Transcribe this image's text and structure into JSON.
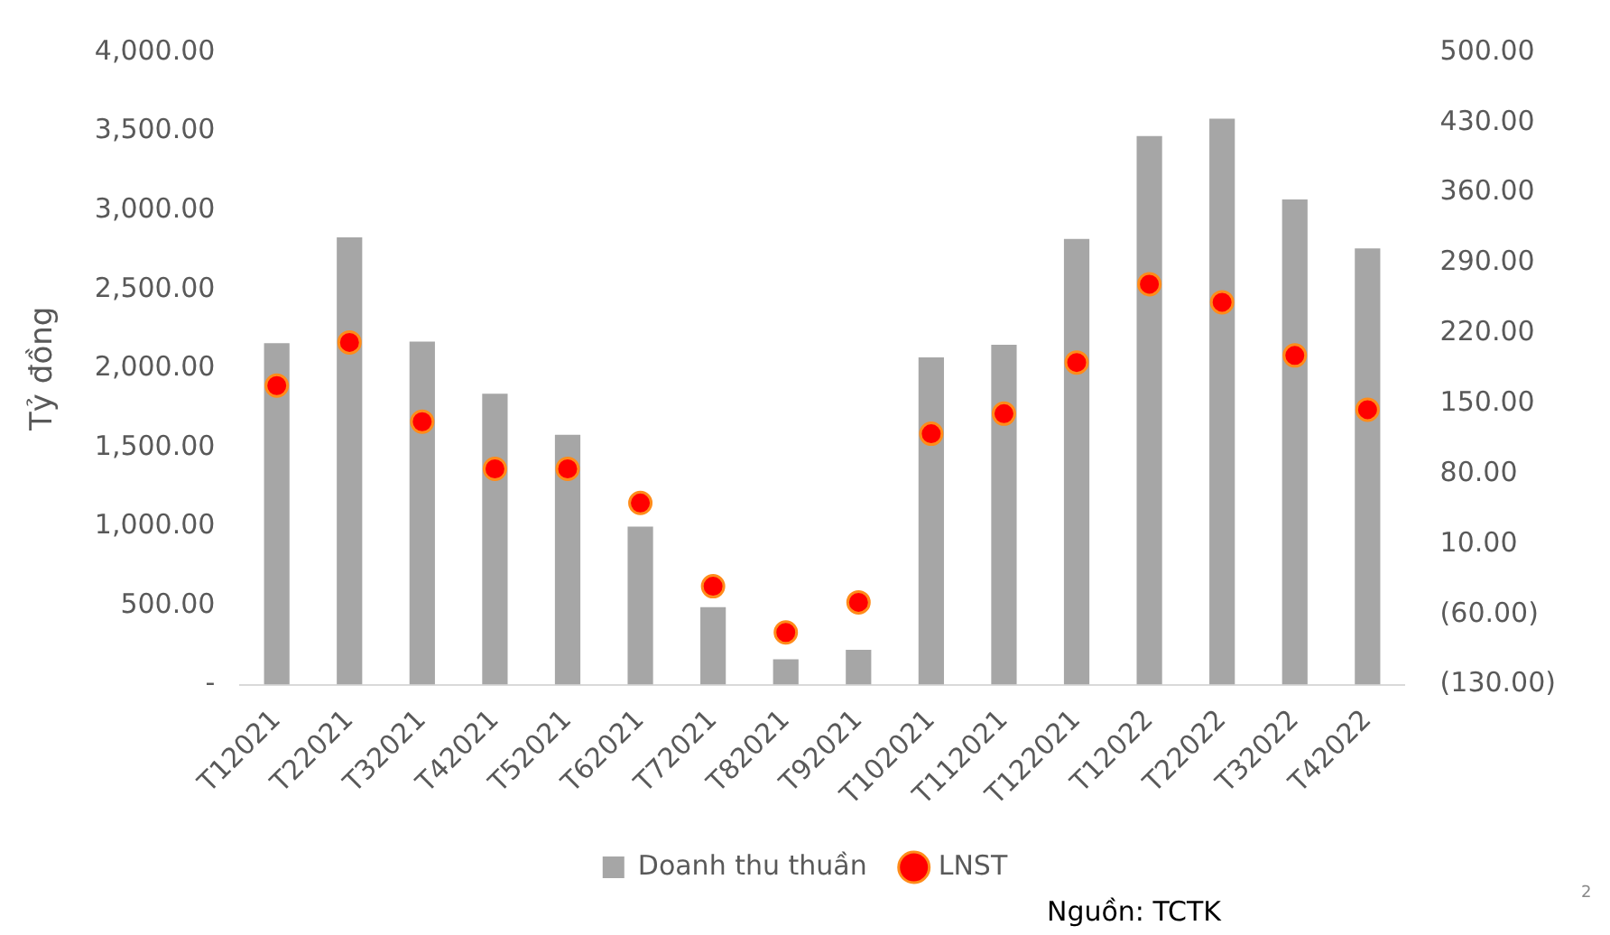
{
  "chart_data": {
    "type": "bar",
    "ylabel": "Tỷ đồng",
    "categories": [
      "T12021",
      "T22021",
      "T32021",
      "T42021",
      "T52021",
      "T62021",
      "T72021",
      "T82021",
      "T92021",
      "T102021",
      "T112021",
      "T122021",
      "T12022",
      "T22022",
      "T32022",
      "T42022"
    ],
    "series": [
      {
        "name": "Doanh thu thuần",
        "color": "#a6a6a6",
        "values": [
          2160,
          2830,
          2170,
          1840,
          1580,
          1000,
          490,
          160,
          220,
          2070,
          2150,
          2820,
          3470,
          3580,
          3070,
          2760
        ]
      },
      {
        "name": "LNST",
        "type": "scatter",
        "axis": "y2",
        "color": "#ff0000",
        "values": [
          168,
          211,
          132,
          85,
          85,
          51,
          -32,
          -78,
          -48,
          120,
          140,
          191,
          269,
          251,
          198,
          144
        ]
      }
    ],
    "ylim": [
      0,
      4000
    ],
    "yticks": [
      {
        "value": 0,
        "label": "-"
      },
      {
        "value": 500,
        "label": "500.00"
      },
      {
        "value": 1000,
        "label": "1,000.00"
      },
      {
        "value": 1500,
        "label": "1,500.00"
      },
      {
        "value": 2000,
        "label": "2,000.00"
      },
      {
        "value": 2500,
        "label": "2,500.00"
      },
      {
        "value": 3000,
        "label": "3,000.00"
      },
      {
        "value": 3500,
        "label": "3,500.00"
      },
      {
        "value": 4000,
        "label": "4,000.00"
      }
    ],
    "y2lim": [
      -130,
      500
    ],
    "y2ticks": [
      {
        "value": -130,
        "label": "(130.00)"
      },
      {
        "value": -60,
        "label": "(60.00)"
      },
      {
        "value": 10,
        "label": "10.00"
      },
      {
        "value": 80,
        "label": "80.00"
      },
      {
        "value": 150,
        "label": "150.00"
      },
      {
        "value": 220,
        "label": "220.00"
      },
      {
        "value": 290,
        "label": "290.00"
      },
      {
        "value": 360,
        "label": "360.00"
      },
      {
        "value": 430,
        "label": "430.00"
      },
      {
        "value": 500,
        "label": "500.00"
      }
    ],
    "legend": "bottom",
    "marker": "circle",
    "annotations": [
      "Nguồn: TCTK",
      "2"
    ]
  }
}
